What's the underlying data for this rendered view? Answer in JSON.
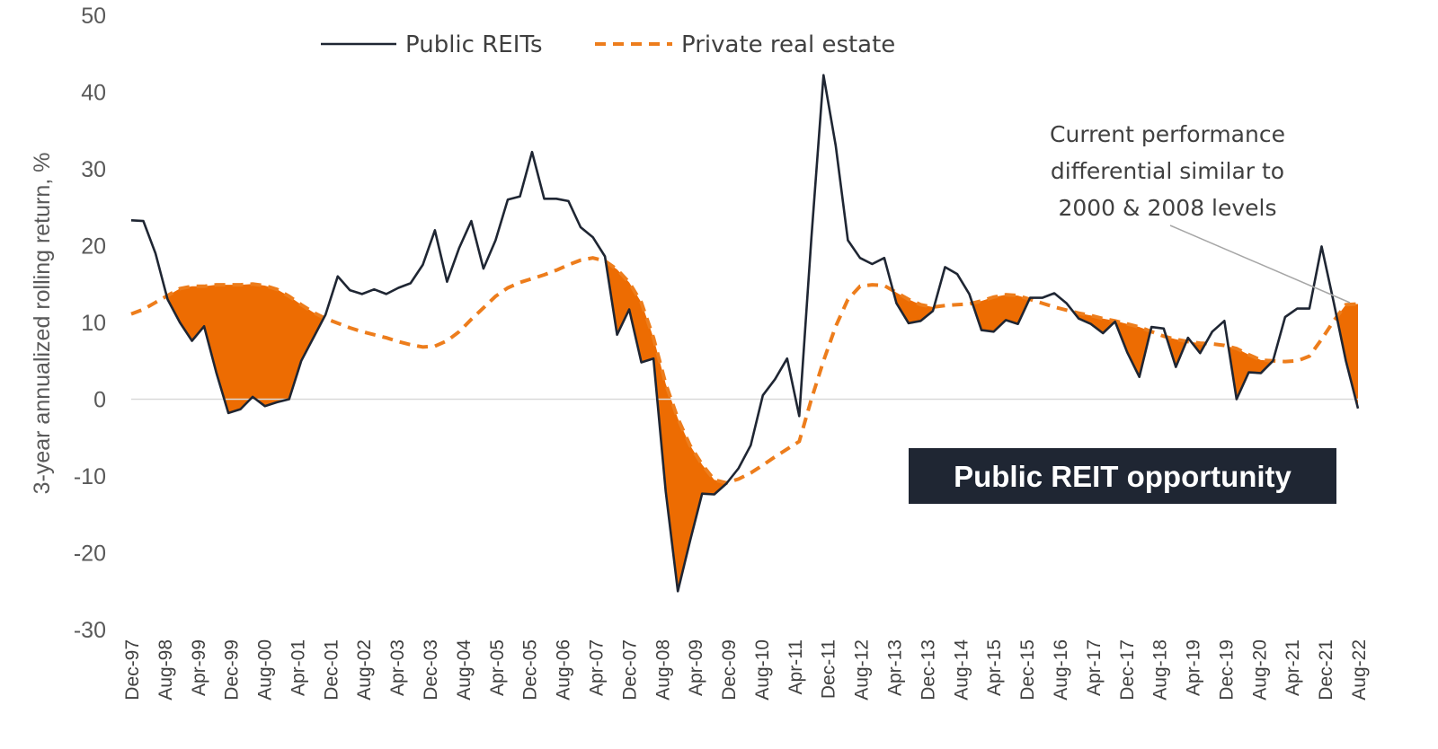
{
  "chart_data": {
    "type": "line",
    "title": "",
    "ylabel": "3-year annualized rolling return, %",
    "xlabel": "",
    "ylim": [
      -30,
      50
    ],
    "yticks": [
      -30,
      -20,
      -10,
      0,
      10,
      20,
      30,
      40,
      50
    ],
    "grid": false,
    "zero_line": true,
    "legend_position": "top-center",
    "x_tick_labels": [
      "Dec-97",
      "Aug-98",
      "Apr-99",
      "Dec-99",
      "Aug-00",
      "Apr-01",
      "Dec-01",
      "Aug-02",
      "Apr-03",
      "Dec-03",
      "Aug-04",
      "Apr-05",
      "Dec-05",
      "Aug-06",
      "Apr-07",
      "Dec-07",
      "Aug-08",
      "Apr-09",
      "Dec-09",
      "Aug-10",
      "Apr-11",
      "Dec-11",
      "Aug-12",
      "Apr-13",
      "Dec-13",
      "Aug-14",
      "Apr-15",
      "Dec-15",
      "Aug-16",
      "Apr-17",
      "Dec-17",
      "Aug-18",
      "Apr-19",
      "Dec-19",
      "Aug-20",
      "Apr-21",
      "Dec-21",
      "Aug-22"
    ],
    "series": [
      {
        "name": "Public REITs",
        "color": "#1f2633",
        "style": "solid",
        "values": [
          23.3,
          23.2,
          19.0,
          13.0,
          10.0,
          7.6,
          9.5,
          3.5,
          -1.8,
          -1.3,
          0.3,
          -0.9,
          -0.4,
          0.0,
          5.0,
          8.0,
          11.0,
          16.0,
          14.2,
          13.7,
          14.3,
          13.7,
          14.5,
          15.1,
          17.5,
          22.0,
          15.3,
          19.7,
          23.2,
          17.0,
          20.7,
          26.0,
          26.4,
          32.2,
          26.1,
          26.1,
          25.8,
          22.4,
          21.1,
          18.6,
          8.4,
          11.7,
          4.8,
          5.3,
          -12.0,
          -25.0,
          -18.5,
          -12.3,
          -12.4,
          -11.0,
          -9.0,
          -6.0,
          0.5,
          2.6,
          5.3,
          -2.2,
          21.0,
          42.2,
          33.0,
          20.7,
          18.4,
          17.6,
          18.4,
          12.5,
          9.9,
          10.2,
          11.5,
          17.2,
          16.3,
          13.7,
          9.0,
          8.8,
          10.3,
          9.8,
          13.2,
          13.2,
          13.8,
          12.5,
          10.5,
          9.8,
          8.6,
          10.1,
          6.1,
          2.9,
          9.4,
          9.2,
          4.2,
          8.0,
          6.0,
          8.8,
          10.2,
          0.0,
          3.5,
          3.4,
          5.0,
          10.7,
          11.8,
          11.8,
          19.9,
          12.6,
          5.0,
          -1.2
        ]
      },
      {
        "name": "Private real estate",
        "color": "#ed7d1c",
        "style": "dashed",
        "values": [
          11.1,
          11.7,
          12.6,
          13.5,
          14.4,
          14.7,
          14.7,
          14.9,
          14.9,
          14.9,
          15.0,
          14.8,
          14.3,
          13.4,
          12.3,
          11.3,
          10.5,
          9.9,
          9.3,
          8.8,
          8.4,
          8.0,
          7.5,
          7.1,
          6.8,
          6.9,
          7.6,
          8.8,
          10.4,
          11.9,
          13.4,
          14.5,
          15.2,
          15.7,
          16.2,
          16.8,
          17.5,
          18.1,
          18.4,
          18.0,
          16.9,
          15.2,
          12.6,
          8.0,
          2.0,
          -2.5,
          -6.0,
          -8.5,
          -10.5,
          -10.9,
          -10.4,
          -9.6,
          -8.6,
          -7.5,
          -6.5,
          -5.5,
          0.0,
          5.0,
          9.5,
          13.0,
          14.7,
          14.9,
          14.8,
          13.9,
          13.0,
          12.3,
          12.0,
          12.2,
          12.3,
          12.4,
          12.8,
          13.3,
          13.6,
          13.5,
          13.0,
          12.5,
          12.0,
          11.6,
          11.2,
          10.9,
          10.5,
          10.2,
          9.8,
          9.4,
          8.8,
          8.2,
          7.8,
          7.5,
          7.3,
          7.2,
          7.0,
          6.6,
          5.8,
          5.1,
          5.0,
          4.9,
          5.0,
          5.6,
          7.8,
          10.2,
          12.3,
          12.4
        ]
      }
    ],
    "annotation": "Current performance differential similar to 2000 & 2008 levels",
    "callout": "Public REIT opportunity",
    "shading": "Filled area where Public REITs return is below Private real estate return",
    "fill_color": "#ed6c02"
  }
}
